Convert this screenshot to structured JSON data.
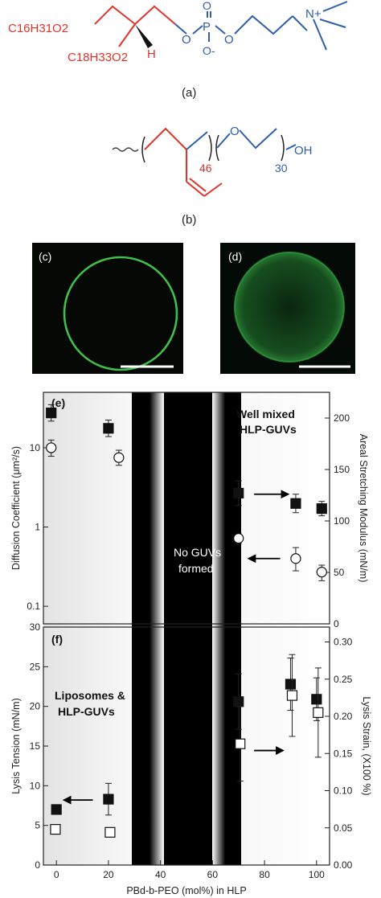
{
  "chem_a": {
    "label_c16": "C16H31O2",
    "label_c18": "C18H33O2",
    "label_h": "H",
    "label_p": "P",
    "label_o_top": "O",
    "label_o_left": "O",
    "label_o_right": "O",
    "label_o_minus": "O-",
    "label_n": "N+",
    "caption": "(a)"
  },
  "chem_b": {
    "sub_46": "46",
    "sub_30": "30",
    "label_o": "O",
    "label_oh": "OH",
    "caption": "(b)"
  },
  "micrographs": {
    "c_label": "(c)",
    "d_label": "(d)"
  },
  "colors": {
    "lipid_red": "#e0342b",
    "polymer_blue": "#2f5fa8",
    "membrane_green": "#3fbf4a",
    "no_guv_band": "#000000",
    "bg_gray": "#e6e6e6"
  },
  "annotations": {
    "panel_e": "(e)",
    "panel_f": "(f)",
    "well_mixed_line1": "Well mixed",
    "well_mixed_line2": "HLP-GUVs",
    "no_guvs_line1": "No GUVs",
    "no_guvs_line2": "formed",
    "liposomes_line1": "Liposomes &",
    "liposomes_line2": "HLP-GUVs"
  },
  "chart_data": [
    {
      "type": "scatter",
      "panel": "(e)",
      "xlabel": "PBd-b-PEO (mol%) in HLP",
      "xlim": [
        -5,
        105
      ],
      "y_left_label": "Diffusion Coefficient (μm²/s)",
      "y_left_scale": "log",
      "y_left_lim": [
        0.06,
        50
      ],
      "y_left_ticks": [
        "0.1",
        "1",
        "10"
      ],
      "y_right_label": "Areal Stretching Modulus (mN/m)",
      "y_right_lim": [
        0,
        225
      ],
      "y_right_ticks": [
        "0",
        "50",
        "100",
        "150",
        "200"
      ],
      "series": [
        {
          "marker": "filled-square",
          "axis": "right",
          "x": [
            -2,
            20,
            70,
            92,
            102
          ],
          "y": [
            205,
            190,
            127,
            117,
            112
          ],
          "err": [
            8,
            8,
            12,
            9,
            7
          ]
        },
        {
          "marker": "open-circle",
          "axis": "left",
          "x": [
            -2,
            24,
            70,
            92,
            102
          ],
          "y": [
            10,
            7.5,
            0.72,
            0.4,
            0.27
          ],
          "err_lo": [
            2.2,
            1.5,
            0.1,
            0.12,
            0.06
          ],
          "err_hi": [
            2.5,
            1.8,
            0.1,
            0.15,
            0.06
          ]
        }
      ],
      "arrows": [
        {
          "direction": "right",
          "x_from": 76,
          "x_to": 89,
          "y_right": 126
        },
        {
          "direction": "left",
          "x_from": 86,
          "x_to": 74,
          "y_left": 0.4
        }
      ]
    },
    {
      "type": "scatter",
      "panel": "(f)",
      "xlabel": "PBd-b-PEO (mol%) in HLP",
      "xlim": [
        -5,
        105
      ],
      "x_ticks": [
        "0",
        "20",
        "40",
        "60",
        "80",
        "100"
      ],
      "y_left_label": "Lysis Tension (mN/m)",
      "y_left_lim": [
        0,
        30
      ],
      "y_left_ticks": [
        "0",
        "5",
        "10",
        "15",
        "20",
        "25",
        "30"
      ],
      "y_right_label": "Lysis Strain, (X100 %)",
      "y_right_lim": [
        0,
        0.32
      ],
      "y_right_ticks": [
        "0.00",
        "0.05",
        "0.10",
        "0.15",
        "0.20",
        "0.25",
        "0.30"
      ],
      "series": [
        {
          "marker": "filled-square",
          "axis": "left",
          "x": [
            0,
            20,
            70,
            90,
            100
          ],
          "y": [
            7,
            8.3,
            20.6,
            22.8,
            20.9
          ],
          "err": [
            0.3,
            2.0,
            3.5,
            3.3,
            2.7
          ]
        },
        {
          "marker": "open-square",
          "axis": "right",
          "x": [
            -1,
            20,
            70,
            90,
            100
          ],
          "y": [
            0.048,
            0.044,
            0.163,
            0.228,
            0.205
          ],
          "err": [
            0.004,
            0.004,
            0.05,
            0.055,
            0.06
          ]
        }
      ],
      "arrows": [
        {
          "direction": "left",
          "x_from": 14,
          "x_to": 3,
          "y_left": 8.2
        },
        {
          "direction": "right",
          "x_from": 76,
          "x_to": 87,
          "y_right": 0.154
        }
      ],
      "bands": [
        {
          "kind": "gradient-light",
          "x_from": -5,
          "x_to": 33
        },
        {
          "kind": "black",
          "x_from": 37,
          "x_to": 61
        }
      ]
    }
  ]
}
